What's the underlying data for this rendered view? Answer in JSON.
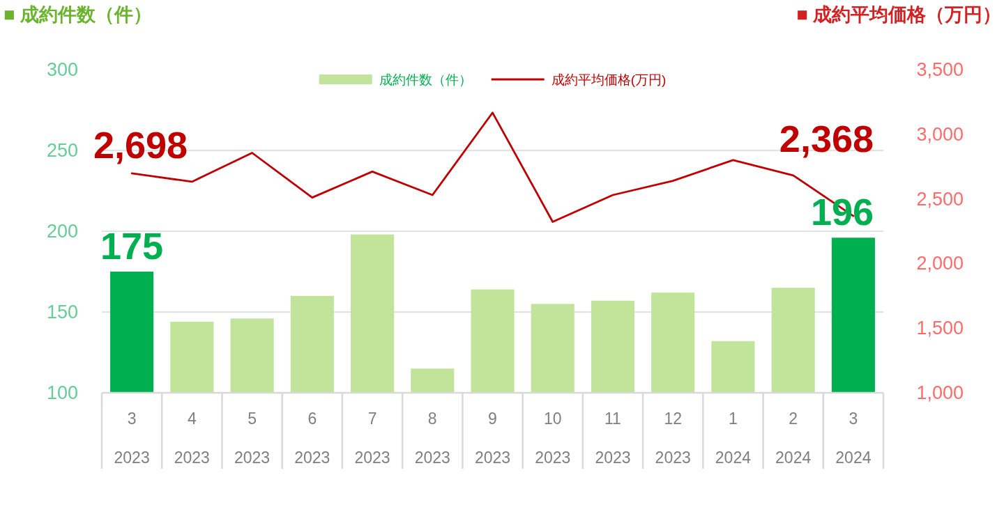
{
  "chart_data": {
    "type": "bar",
    "ylabel": "■ 成約件数（件）",
    "y2label": "■ 成約平均価格（万円）",
    "categories": [
      "3\n2023",
      "4\n2023",
      "5\n2023",
      "6\n2023",
      "7\n2023",
      "8\n2023",
      "9\n2023",
      "10\n2023",
      "11\n2023",
      "12\n2023",
      "1\n2024",
      "2\n2024",
      "3\n2024"
    ],
    "series": [
      {
        "name": "成約件数（件）",
        "color": "#c2e39a",
        "colors": [
          "#00b050",
          "#c2e39a",
          "#c2e39a",
          "#c2e39a",
          "#c2e39a",
          "#c2e39a",
          "#c2e39a",
          "#c2e39a",
          "#c2e39a",
          "#c2e39a",
          "#c2e39a",
          "#c2e39a",
          "#00b050"
        ],
        "values": [
          175,
          144,
          146,
          160,
          198,
          115,
          164,
          155,
          157,
          162,
          132,
          165,
          196
        ],
        "value_labels": [
          "175",
          null,
          null,
          null,
          null,
          null,
          null,
          null,
          null,
          null,
          null,
          null,
          "196"
        ]
      },
      {
        "name": "成約平均価格(万円)",
        "type": "line",
        "axis": "y2",
        "color": "#c00000",
        "values": [
          2698,
          2633,
          2856,
          2511,
          2711,
          2530,
          3167,
          2323,
          2530,
          2640,
          2800,
          2682,
          2368
        ],
        "value_labels": [
          "2,698",
          null,
          null,
          null,
          null,
          null,
          null,
          null,
          null,
          null,
          null,
          null,
          "2,368"
        ]
      }
    ],
    "ylim": [
      100,
      300
    ],
    "yticks": [
      100,
      150,
      200,
      250,
      300
    ],
    "y2lim": [
      1000,
      3500
    ],
    "y2ticks": [
      {
        "value": 1000,
        "label": "1,000"
      },
      {
        "value": 1500,
        "label": "1,500"
      },
      {
        "value": 2000,
        "label": "2,000"
      },
      {
        "value": 2500,
        "label": "2,500"
      },
      {
        "value": 3000,
        "label": "3,000"
      },
      {
        "value": 3500,
        "label": "3,500"
      }
    ],
    "grid": "y",
    "legend": "top",
    "marker": "none",
    "line_style": "solid"
  }
}
